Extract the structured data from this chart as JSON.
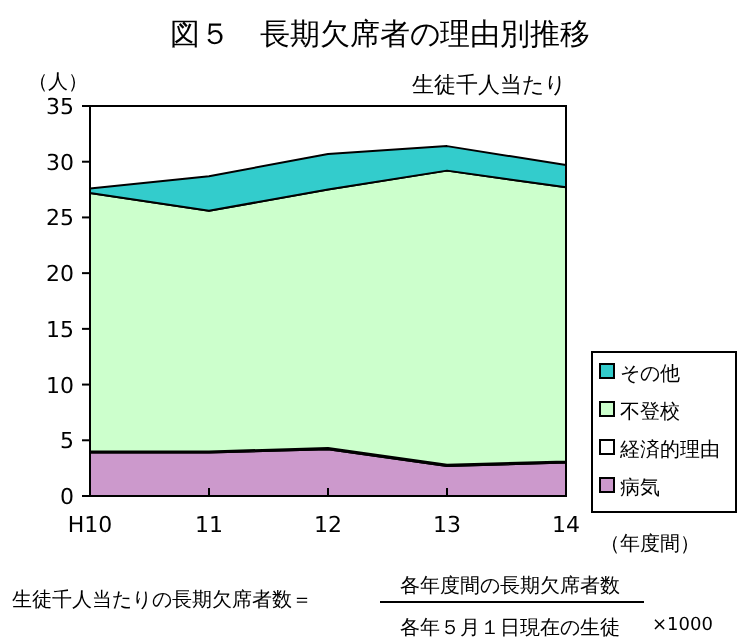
{
  "chart_data": {
    "type": "area",
    "title": "図５　長期欠席者の理由別推移",
    "subtitle": "生徒千人当たり",
    "ylabel": "（人）",
    "xlabel": "（年度間）",
    "categories": [
      "H10",
      "11",
      "12",
      "13",
      "14"
    ],
    "stacked": true,
    "ylim": [
      0,
      35
    ],
    "yticks": [
      0,
      5,
      10,
      15,
      20,
      25,
      30,
      35
    ],
    "grid": false,
    "legend": "right",
    "series": [
      {
        "name": "病気",
        "color": "#cc99cc",
        "values": [
          3.9,
          3.9,
          4.2,
          2.7,
          3.0
        ]
      },
      {
        "name": "経済的理由",
        "color": "#ffffff",
        "values": [
          0.1,
          0.1,
          0.1,
          0.1,
          0.1
        ]
      },
      {
        "name": "不登校",
        "color": "#ccffcc",
        "values": [
          23.2,
          21.6,
          23.2,
          26.4,
          24.6
        ]
      },
      {
        "name": "その他",
        "color": "#33cccc",
        "values": [
          0.4,
          3.1,
          3.2,
          2.2,
          2.0
        ]
      }
    ],
    "annotations": [
      "生徒千人当たりの長期欠席者数＝",
      "各年度間の長期欠席者数",
      "各年５月１日現在の生徒",
      "×1000"
    ]
  }
}
